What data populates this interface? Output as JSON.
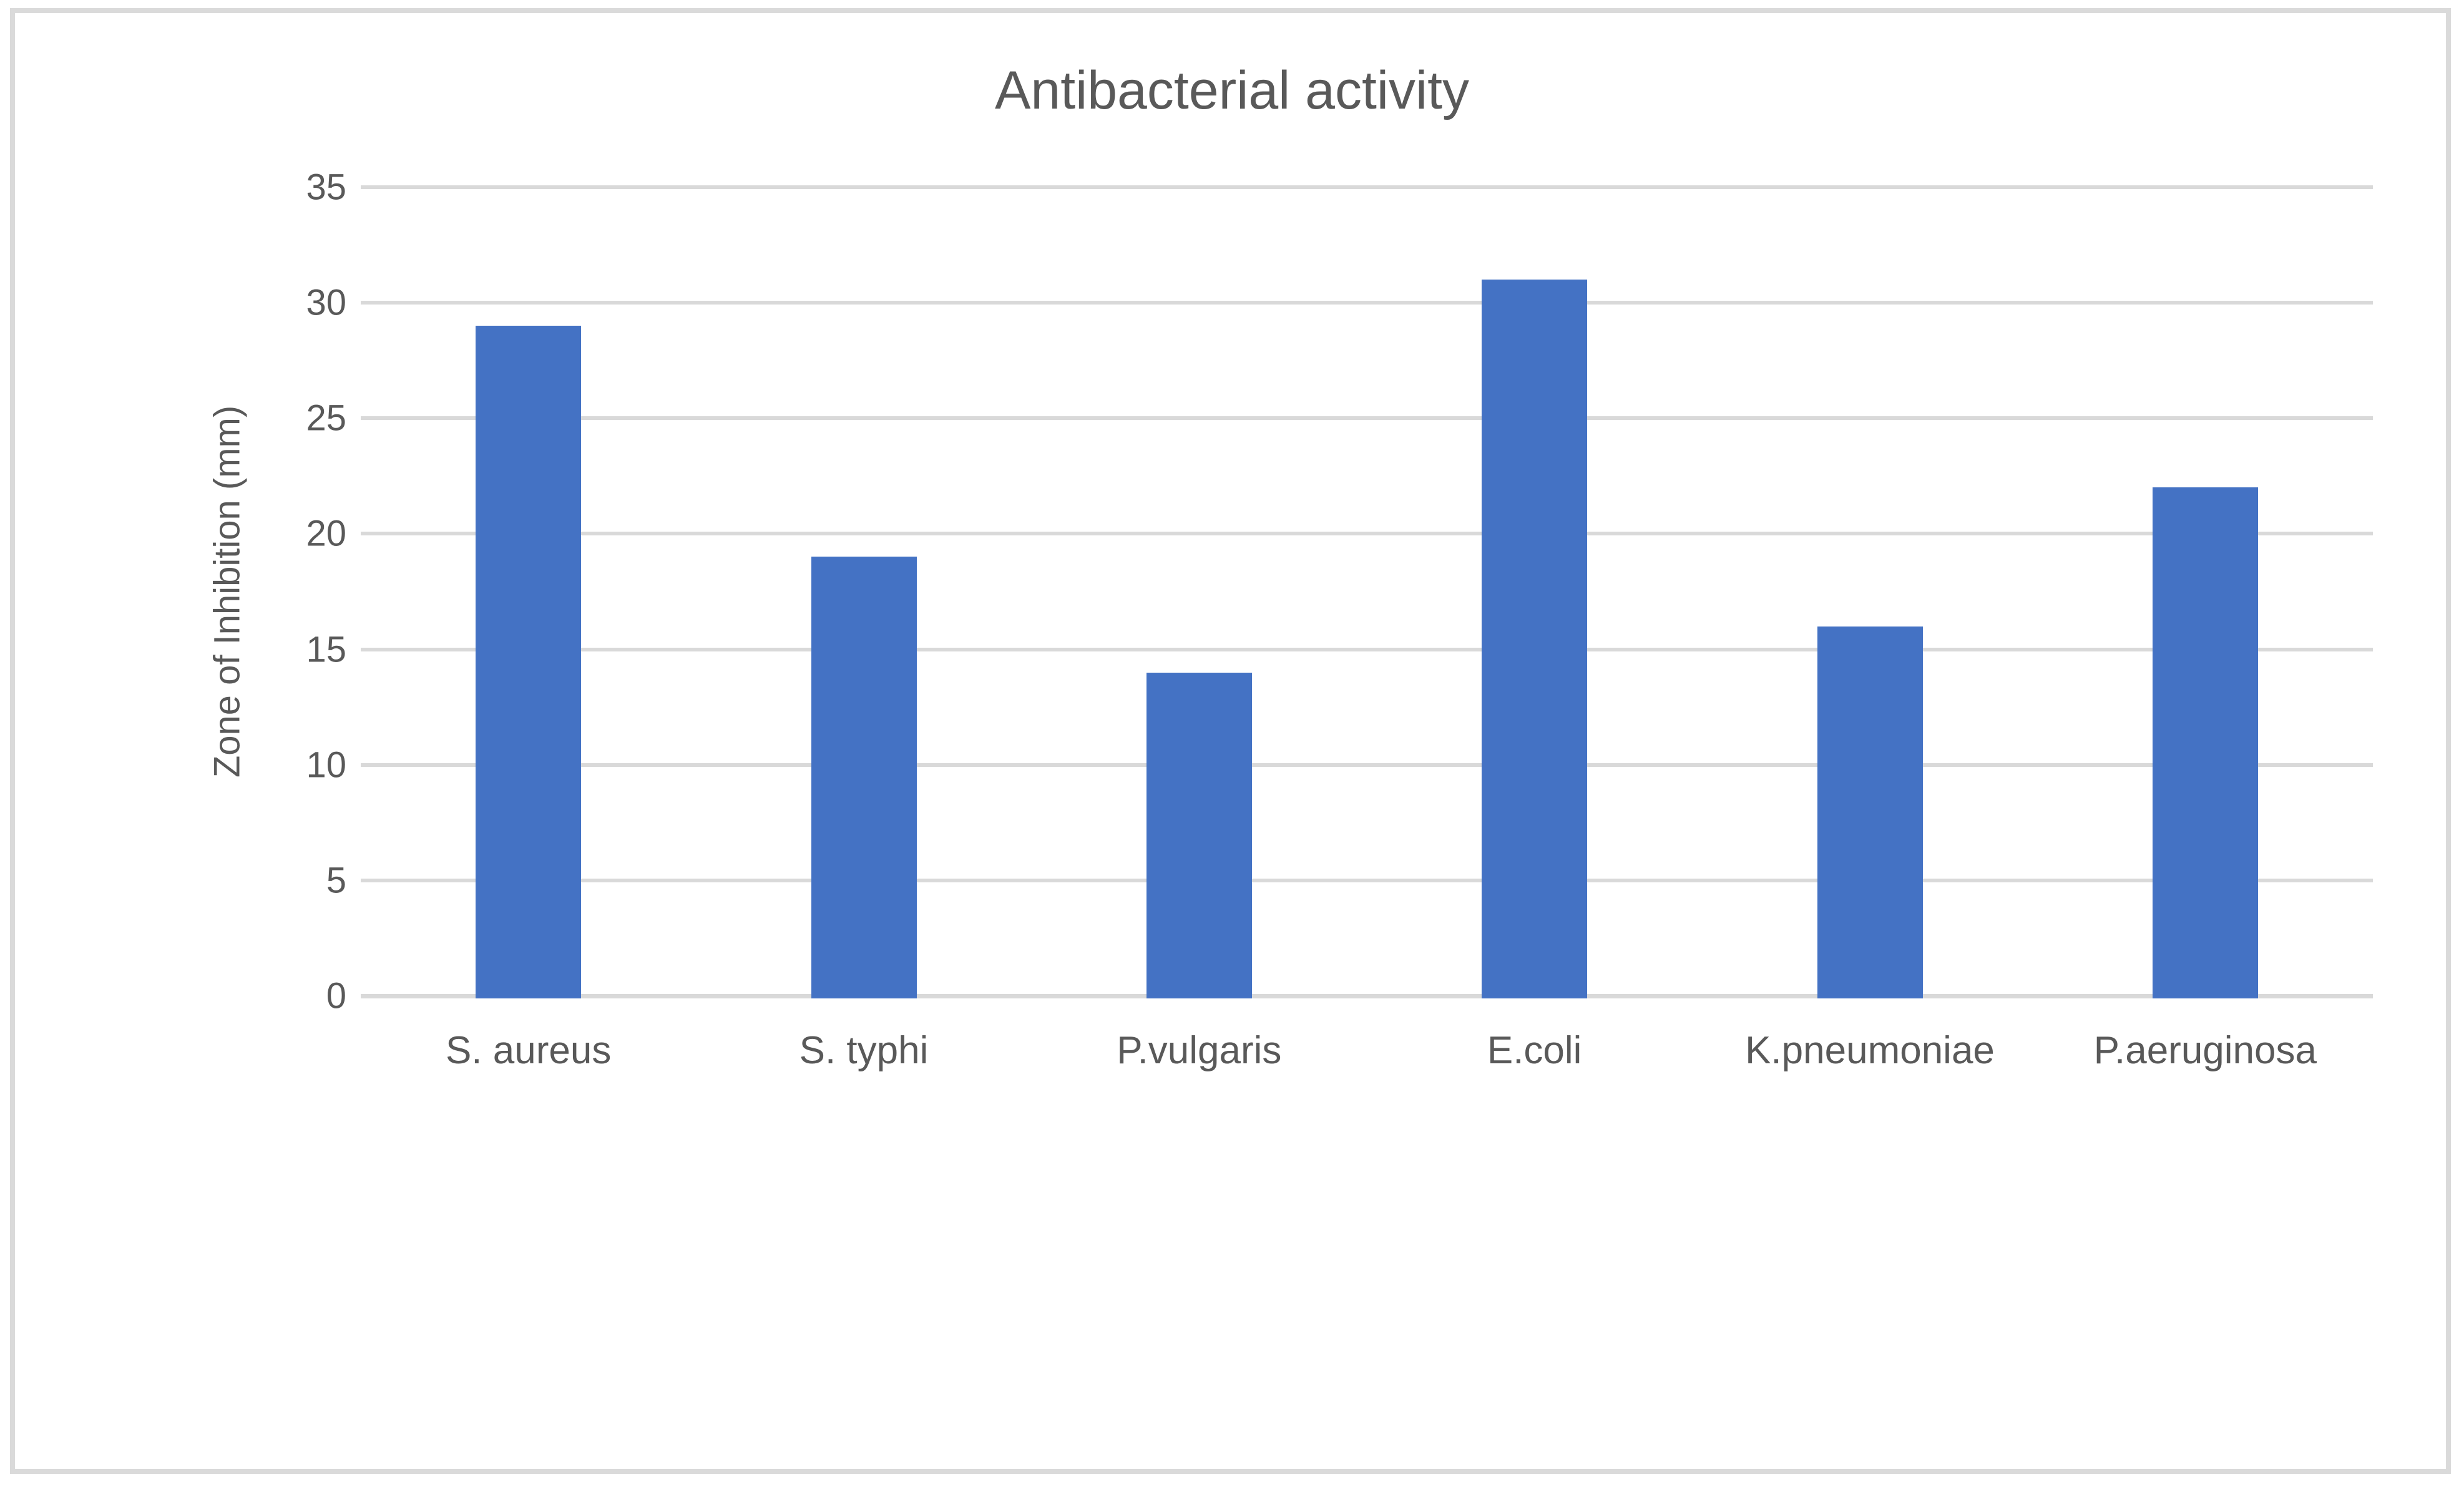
{
  "chart_data": {
    "type": "bar",
    "title": "Antibacterial activity",
    "ylabel": "Zone of Inhibition (mm)",
    "xlabel": "",
    "categories": [
      "S. aureus",
      "S. typhi",
      "P.vulgaris",
      "E.coli",
      "K.pneumoniae",
      "P.aeruginosa"
    ],
    "values": [
      29,
      19,
      14,
      31,
      16,
      22
    ],
    "ylim": [
      0,
      35
    ],
    "ytick_step": 5,
    "ytick_labels": [
      "0",
      "5",
      "10",
      "15",
      "20",
      "25",
      "30",
      "35"
    ],
    "grid": true,
    "legend": false,
    "bar_color": "#4472C4",
    "gridline_color": "#D9D9D9",
    "axis_line_color": "#D9D9D9",
    "text_color": "#595959",
    "frame_border_color": "#DADADA",
    "background_color": "#FFFFFF"
  }
}
